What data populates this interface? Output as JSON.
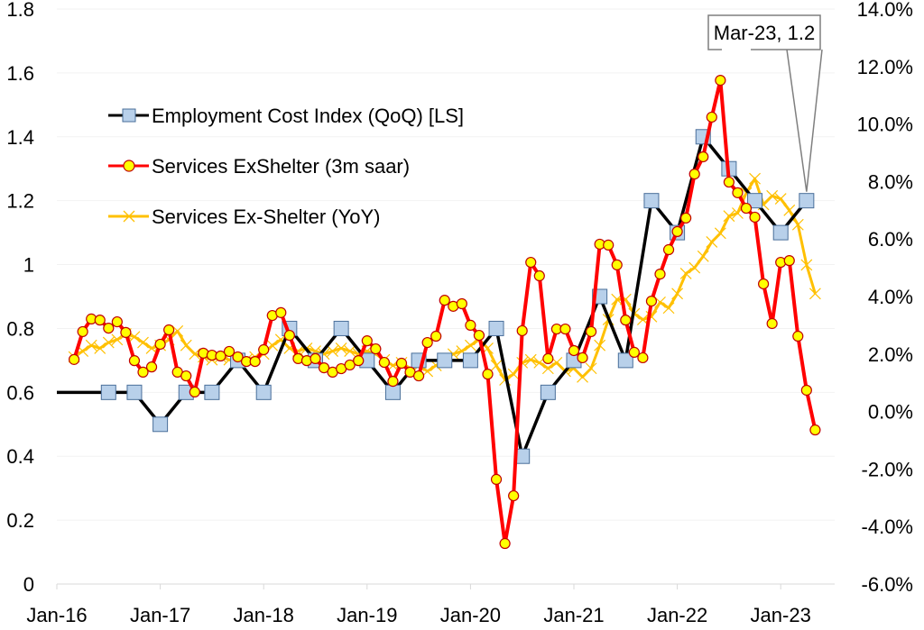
{
  "chart_data": {
    "type": "line",
    "title": "",
    "xlabel": "",
    "ylabel_left": "",
    "ylabel_right": "",
    "grid": true,
    "legend_position": "top-left",
    "left_axis": {
      "range": [
        0,
        1.8
      ],
      "ticks": [
        "0",
        "0.2",
        "0.4",
        "0.6",
        "0.8",
        "1",
        "1.2",
        "1.4",
        "1.6",
        "1.8"
      ]
    },
    "right_axis": {
      "range": [
        -6.0,
        14.0
      ],
      "unit": "%",
      "ticks": [
        "-6.0%",
        "-4.0%",
        "-2.0%",
        "0.0%",
        "2.0%",
        "4.0%",
        "6.0%",
        "8.0%",
        "10.0%",
        "12.0%",
        "14.0%"
      ]
    },
    "x_axis": {
      "start": "Jan-16",
      "end": "Jun-23",
      "ticks": [
        "Jan-16",
        "Jan-17",
        "Jan-18",
        "Jan-19",
        "Jan-20",
        "Jan-21",
        "Jan-22",
        "Jan-23"
      ]
    },
    "series": [
      {
        "name": "Employment Cost Index (QoQ) [LS]",
        "axis": "left",
        "color": "#000000",
        "marker": "square",
        "marker_fill": "#b8d0ea",
        "marker_edge": "#4a6f9a",
        "x": [
          "Dec-15",
          "Jun-16",
          "Sep-16",
          "Dec-16",
          "Mar-17",
          "Jun-17",
          "Sep-17",
          "Dec-17",
          "Mar-18",
          "Jun-18",
          "Sep-18",
          "Dec-18",
          "Mar-19",
          "Jun-19",
          "Sep-19",
          "Dec-19",
          "Mar-20",
          "Jun-20",
          "Sep-20",
          "Dec-20",
          "Mar-21",
          "Jun-21",
          "Sep-21",
          "Dec-21",
          "Mar-22",
          "Jun-22",
          "Sep-22",
          "Dec-22",
          "Mar-23"
        ],
        "values": [
          0.6,
          0.6,
          0.6,
          0.5,
          0.6,
          0.6,
          0.7,
          0.6,
          0.8,
          0.7,
          0.8,
          0.7,
          0.6,
          0.7,
          0.7,
          0.7,
          0.8,
          0.4,
          0.6,
          0.7,
          0.9,
          0.7,
          1.2,
          1.1,
          1.4,
          1.3,
          1.2,
          1.1,
          1.2
        ]
      },
      {
        "name": "Services ExShelter (3m saar)",
        "axis": "right",
        "color": "#ff0000",
        "marker": "circle",
        "marker_fill": "#ffff00",
        "marker_edge": "#c00000",
        "start": "Feb-16",
        "frequency": "monthly",
        "values": [
          1.81,
          2.78,
          3.22,
          3.18,
          2.9,
          3.12,
          2.75,
          1.77,
          1.37,
          1.55,
          2.34,
          2.84,
          1.37,
          1.24,
          0.68,
          2.03,
          1.96,
          1.93,
          2.09,
          1.9,
          1.74,
          1.74,
          2.15,
          3.34,
          3.44,
          2.65,
          1.84,
          1.77,
          1.84,
          1.52,
          1.37,
          1.49,
          1.62,
          1.77,
          2.46,
          2.18,
          1.71,
          1.05,
          1.68,
          1.37,
          1.24,
          2.4,
          2.62,
          3.87,
          3.66,
          3.75,
          3.0,
          2.65,
          1.3,
          -2.36,
          -4.59,
          -2.93,
          2.81,
          5.19,
          4.72,
          1.84,
          2.87,
          2.87,
          2.12,
          1.87,
          2.78,
          5.82,
          5.79,
          5.1,
          3.18,
          2.06,
          1.87,
          3.84,
          4.78,
          5.63,
          6.26,
          6.73,
          8.26,
          8.86,
          10.24,
          11.52,
          7.98,
          7.61,
          7.07,
          6.76,
          4.44,
          3.06,
          5.19,
          5.25,
          2.62,
          0.74,
          -0.64
        ]
      },
      {
        "name": "Services Ex-Shelter (YoY)",
        "axis": "right",
        "color": "#ffc000",
        "marker": "x",
        "start": "Feb-16",
        "frequency": "monthly",
        "values": [
          1.9,
          2.1,
          2.3,
          2.2,
          2.4,
          2.5,
          2.7,
          2.6,
          2.4,
          2.2,
          2.3,
          2.5,
          2.8,
          2.3,
          2.0,
          1.9,
          1.8,
          1.9,
          1.8,
          1.7,
          1.8,
          1.9,
          2.0,
          2.3,
          2.5,
          2.2,
          2.1,
          2.2,
          2.1,
          2.0,
          2.1,
          2.2,
          2.1,
          2.0,
          2.1,
          2.0,
          1.8,
          1.6,
          1.7,
          1.5,
          1.6,
          1.4,
          1.6,
          1.8,
          2.0,
          2.1,
          2.3,
          2.5,
          2.2,
          1.6,
          1.1,
          1.3,
          1.7,
          1.8,
          1.7,
          1.5,
          1.7,
          1.4,
          1.5,
          1.2,
          1.5,
          2.3,
          3.2,
          3.9,
          3.9,
          3.4,
          3.2,
          3.3,
          3.8,
          3.6,
          4.1,
          4.8,
          5.0,
          5.4,
          5.9,
          6.2,
          6.8,
          6.9,
          7.6,
          8.1,
          7.2,
          7.5,
          7.4,
          7.0,
          6.5,
          5.1,
          4.1
        ]
      }
    ],
    "annotations": [
      {
        "text": "Mar-23, 1.2",
        "target_series": 0,
        "target_x": "Mar-23",
        "target_value": 1.2
      }
    ]
  }
}
